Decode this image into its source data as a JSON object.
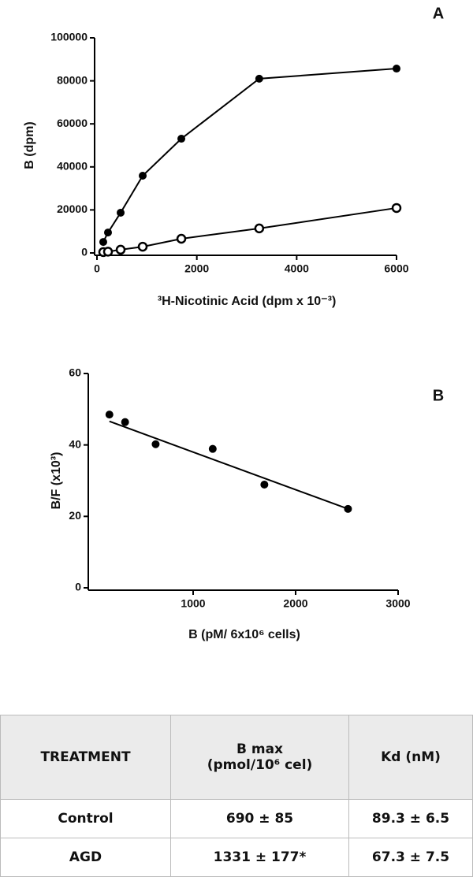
{
  "chart_data": [
    {
      "type": "line",
      "panel": "A",
      "x_label": "³H-Nicotinic Acid (dpm x 10⁻³)",
      "y_label": "B (dpm)",
      "x": [
        126,
        221,
        474,
        916,
        1690,
        3250,
        6000
      ],
      "series": [
        {
          "color": "#000000",
          "marker": "filled",
          "values": [
            5100,
            9500,
            18700,
            35900,
            53100,
            81000,
            85700
          ]
        },
        {
          "color": "#000000",
          "marker": "open",
          "values": [
            400,
            600,
            1500,
            2900,
            6600,
            11400,
            20900
          ]
        }
      ],
      "xlim": [
        0,
        6000
      ],
      "xticks": [
        0,
        2000,
        4000,
        6000
      ],
      "ylim": [
        0,
        100000
      ],
      "yticks": [
        0,
        20000,
        40000,
        60000,
        80000,
        100000
      ]
    },
    {
      "type": "scatter",
      "panel": "B",
      "x_label": "B (pM/ 6x10⁶ cells)",
      "y_label": "B/F (x10³)",
      "x": [
        183,
        336,
        634,
        1191,
        1695,
        2511
      ],
      "series": [
        {
          "color": "#000000",
          "marker": "filled",
          "values": [
            48.5,
            46.4,
            40.2,
            38.9,
            28.9,
            22.1
          ]
        }
      ],
      "trend_line": {
        "color": "#000000",
        "x": [
          183,
          2511
        ],
        "values": [
          46.6,
          22.1
        ]
      },
      "xlim": [
        0,
        3000
      ],
      "xticks": [
        1000,
        2000,
        3000
      ],
      "ylim": [
        0,
        60
      ],
      "yticks": [
        0,
        20,
        40,
        60
      ]
    }
  ],
  "table": {
    "header": [
      "TREATMENT",
      [
        "B max",
        "(pmol/10⁶ cel)"
      ],
      "Kd (nM)"
    ],
    "rows": [
      [
        "Control",
        "690 ± 85",
        "89.3 ± 6.5"
      ],
      [
        "AGD",
        "1331 ± 177*",
        "67.3 ± 7.5"
      ]
    ]
  }
}
